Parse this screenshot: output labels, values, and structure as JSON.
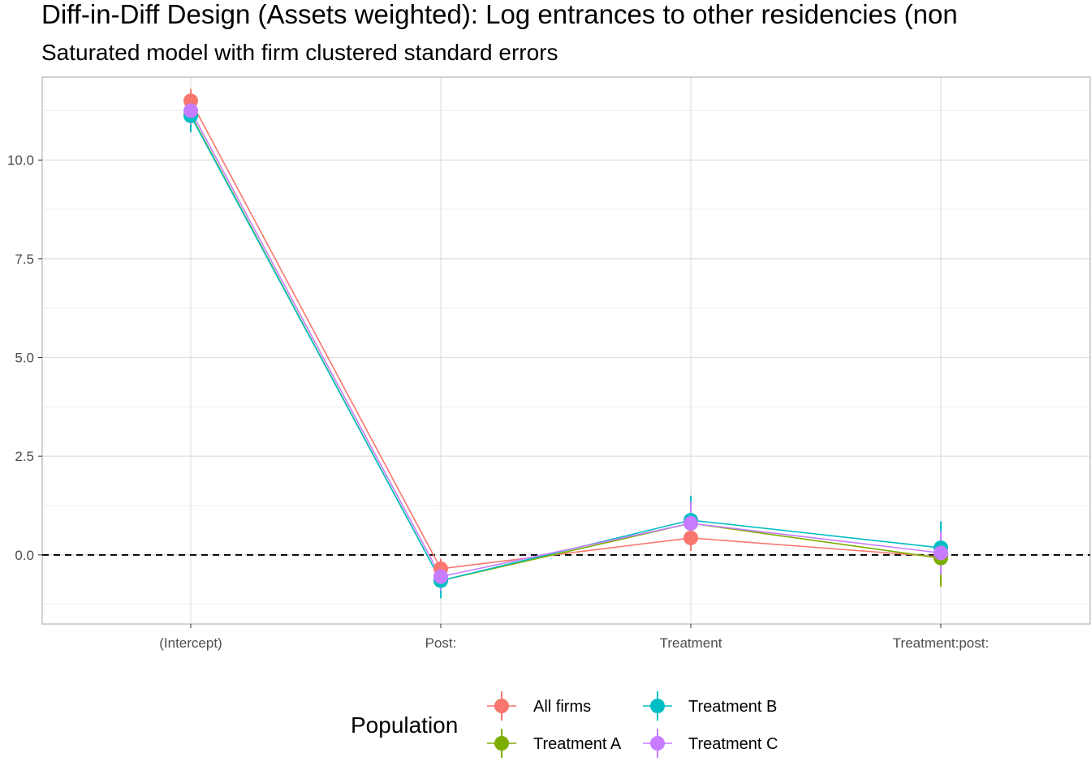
{
  "chart_data": {
    "type": "line",
    "title": "Diff-in-Diff Design (Assets weighted): Log entrances to other residencies (non",
    "subtitle": "Saturated model with firm clustered standard errors",
    "xlabel": "",
    "ylabel": "",
    "categories": [
      "(Intercept)",
      "Post:",
      "Treatment",
      "Treatment:post:"
    ],
    "ylim": [
      -1.75,
      12.1
    ],
    "yticks": [
      0.0,
      2.5,
      5.0,
      7.5,
      10.0
    ],
    "ytick_labels": [
      "0.0",
      "2.5",
      "5.0",
      "7.5",
      "10.0"
    ],
    "reference_line": 0.0,
    "grid": true,
    "legend": {
      "title": "Population",
      "position": "bottom"
    },
    "series": [
      {
        "name": "All firms",
        "color": "#F8766D",
        "values": [
          11.5,
          -0.35,
          0.43,
          -0.05
        ],
        "lower": [
          11.2,
          -0.6,
          0.1,
          -0.4
        ],
        "upper": [
          11.8,
          -0.1,
          0.8,
          0.3
        ]
      },
      {
        "name": "Treatment A",
        "color": "#7CAE00",
        "values": [
          11.15,
          -0.65,
          0.8,
          -0.08
        ],
        "lower": [
          10.8,
          -1.0,
          0.3,
          -0.8
        ],
        "upper": [
          11.5,
          -0.3,
          1.3,
          0.65
        ]
      },
      {
        "name": "Treatment B",
        "color": "#00BFC4",
        "values": [
          11.12,
          -0.65,
          0.88,
          0.18
        ],
        "lower": [
          10.7,
          -1.1,
          0.25,
          -0.45
        ],
        "upper": [
          11.5,
          -0.2,
          1.5,
          0.85
        ]
      },
      {
        "name": "Treatment C",
        "color": "#C77CFF",
        "values": [
          11.25,
          -0.55,
          0.8,
          0.05
        ],
        "lower": [
          10.9,
          -0.9,
          0.3,
          -0.5
        ],
        "upper": [
          11.6,
          -0.2,
          1.35,
          0.6
        ]
      }
    ]
  }
}
